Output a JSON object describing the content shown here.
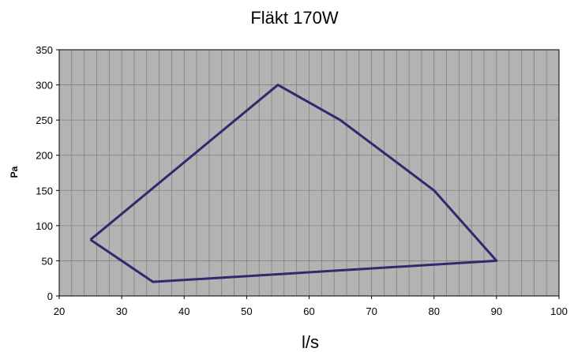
{
  "chart_data": {
    "type": "line",
    "title": "Fläkt 170W",
    "xlabel": "l/s",
    "ylabel": "Pa",
    "xlim": [
      20,
      100
    ],
    "ylim": [
      0,
      350
    ],
    "x_ticks": [
      "20",
      "30",
      "40",
      "50",
      "60",
      "70",
      "80",
      "90",
      "100"
    ],
    "y_ticks": [
      "0",
      "50",
      "100",
      "150",
      "200",
      "250",
      "300",
      "350"
    ],
    "grid": true,
    "legend": "none",
    "series": [
      {
        "x": [
          25,
          55,
          65,
          80,
          90,
          35,
          25
        ],
        "y": [
          80,
          300,
          250,
          150,
          50,
          20,
          80
        ]
      }
    ],
    "colors": {
      "plot_bg": "#b3b3b3",
      "grid": "#808080",
      "line": "#2e2a6e",
      "axis": "#000000"
    }
  }
}
